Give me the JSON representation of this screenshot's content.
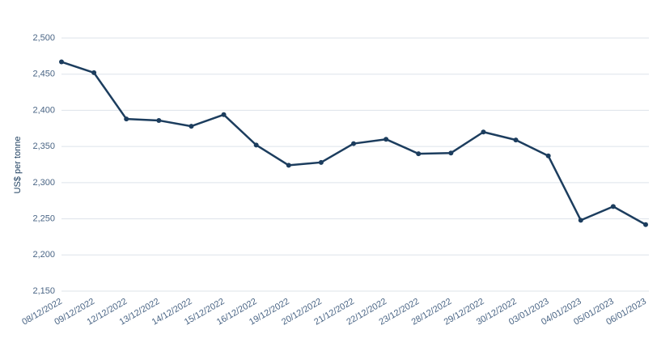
{
  "chart_data": {
    "type": "line",
    "y_label": "US$ per tonne",
    "categories": [
      "08/12/2022",
      "09/12/2022",
      "12/12/2022",
      "13/12/2022",
      "14/12/2022",
      "15/12/2022",
      "16/12/2022",
      "19/12/2022",
      "20/12/2022",
      "21/12/2022",
      "22/12/2022",
      "23/12/2022",
      "28/12/2022",
      "29/12/2022",
      "30/12/2022",
      "03/01/2023",
      "04/01/2023",
      "05/01/2023",
      "06/01/2023"
    ],
    "series": [
      {
        "color": "#1c3d5e",
        "values": [
          2467,
          2452,
          2388,
          2386,
          2378,
          2394,
          2352,
          2324,
          2328,
          2354,
          2360,
          2340,
          2341,
          2370,
          2359,
          2337,
          2248,
          2267,
          2242
        ]
      }
    ],
    "ylim": [
      2150,
      2500
    ],
    "yticks": [
      {
        "value": 2150,
        "label": "2,150"
      },
      {
        "value": 2200,
        "label": "2,200"
      },
      {
        "value": 2250,
        "label": "2,250"
      },
      {
        "value": 2300,
        "label": "2,300"
      },
      {
        "value": 2350,
        "label": "2,350"
      },
      {
        "value": 2400,
        "label": "2,400"
      },
      {
        "value": 2450,
        "label": "2,450"
      },
      {
        "value": 2500,
        "label": "2,500"
      }
    ],
    "grid": true
  }
}
